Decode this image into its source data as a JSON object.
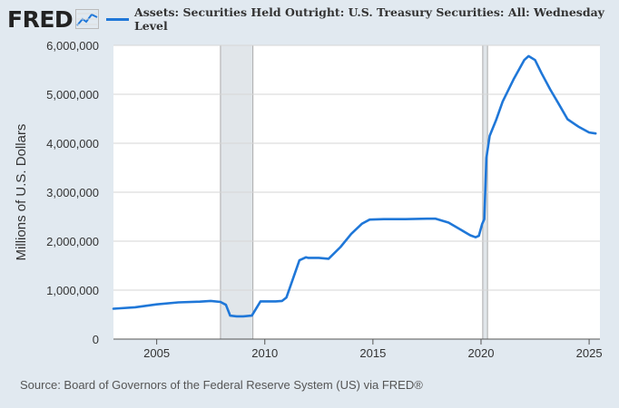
{
  "header": {
    "logo_text": "FRED",
    "logo_icon": "trend-line-icon"
  },
  "colors": {
    "series": "#1f77d8",
    "recession": "#e1e6ea",
    "background": "#e1e9f0",
    "plot_bg": "#ffffff"
  },
  "source_text": "Source: Board of Governors of the Federal Reserve System (US) via FRED®",
  "chart_data": {
    "type": "line",
    "title": "",
    "xlabel": "",
    "ylabel": "Millions of U.S. Dollars",
    "xlim": [
      2003.0,
      2025.5
    ],
    "ylim": [
      0,
      6000000
    ],
    "x_ticks": [
      2005,
      2010,
      2015,
      2020,
      2025
    ],
    "x_tick_labels": [
      "2005",
      "2010",
      "2015",
      "2020",
      "2025"
    ],
    "y_ticks": [
      0,
      1000000,
      2000000,
      3000000,
      4000000,
      5000000,
      6000000
    ],
    "y_tick_labels": [
      "0",
      "1,000,000",
      "2,000,000",
      "3,000,000",
      "4,000,000",
      "5,000,000",
      "6,000,000"
    ],
    "grid": true,
    "legend_position": "top",
    "recessions": [
      [
        2007.95,
        2009.45
      ],
      [
        2020.08,
        2020.3
      ]
    ],
    "series": [
      {
        "name": "Assets: Securities Held Outright: U.S. Treasury Securities: All: Wednesday Level",
        "x": [
          2003.0,
          2004.0,
          2005.0,
          2006.0,
          2007.0,
          2007.5,
          2007.95,
          2008.2,
          2008.4,
          2008.7,
          2009.0,
          2009.4,
          2009.8,
          2010.5,
          2010.8,
          2011.0,
          2011.6,
          2011.9,
          2012.0,
          2012.5,
          2012.95,
          2013.5,
          2014.0,
          2014.5,
          2014.85,
          2015.5,
          2016.5,
          2017.5,
          2017.9,
          2018.5,
          2019.0,
          2019.5,
          2019.75,
          2019.9,
          2020.05,
          2020.15,
          2020.25,
          2020.4,
          2020.7,
          2021.0,
          2021.5,
          2022.0,
          2022.2,
          2022.5,
          2022.8,
          2023.2,
          2023.6,
          2024.0,
          2024.5,
          2025.0,
          2025.3
        ],
        "values": [
          620000,
          650000,
          710000,
          750000,
          765000,
          780000,
          760000,
          700000,
          480000,
          465000,
          465000,
          480000,
          770000,
          770000,
          780000,
          850000,
          1610000,
          1670000,
          1660000,
          1660000,
          1640000,
          1880000,
          2150000,
          2360000,
          2440000,
          2450000,
          2450000,
          2460000,
          2460000,
          2380000,
          2250000,
          2120000,
          2080000,
          2110000,
          2350000,
          2450000,
          3700000,
          4150000,
          4480000,
          4850000,
          5300000,
          5700000,
          5780000,
          5700000,
          5430000,
          5100000,
          4800000,
          4490000,
          4340000,
          4220000,
          4200000
        ]
      }
    ]
  }
}
